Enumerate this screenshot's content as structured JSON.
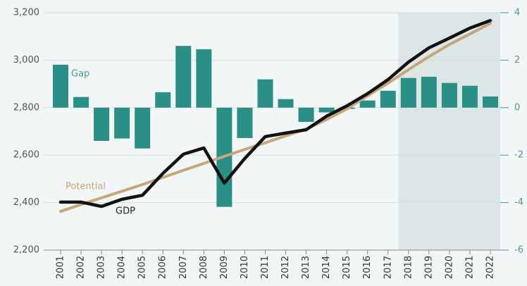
{
  "chart_data": {
    "type": "bar_line",
    "categories": [
      "2001",
      "2002",
      "2003",
      "2004",
      "2005",
      "2006",
      "2007",
      "2008",
      "2009",
      "2010",
      "2011",
      "2012",
      "2013",
      "2014",
      "2015",
      "2016",
      "2017",
      "2018",
      "2019",
      "2020",
      "2021",
      "2022"
    ],
    "series": [
      {
        "name": "Gap",
        "type": "bar",
        "axis": "y2",
        "color": "#2a8f84",
        "values": [
          1.81,
          0.45,
          -1.4,
          -1.3,
          -1.72,
          0.65,
          2.6,
          2.46,
          -4.18,
          -1.28,
          1.19,
          0.36,
          -0.6,
          -0.2,
          -0.05,
          0.3,
          0.71,
          1.25,
          1.3,
          1.04,
          0.92,
          0.47
        ]
      },
      {
        "name": "Potential",
        "type": "line",
        "color": "#c4a77a",
        "values": [
          2363,
          2392,
          2420,
          2448,
          2476,
          2506,
          2536,
          2565,
          2595,
          2624,
          2652,
          2681,
          2710,
          2750,
          2795,
          2850,
          2903,
          2960,
          3015,
          3066,
          3110,
          3155
        ]
      },
      {
        "name": "GDP",
        "type": "line",
        "color": "#111111",
        "values": [
          2402,
          2402,
          2384,
          2414,
          2431,
          2523,
          2604,
          2630,
          2482,
          2586,
          2678,
          2693,
          2707,
          2764,
          2808,
          2859,
          2918,
          2992,
          3052,
          3093,
          3135,
          3167
        ]
      }
    ],
    "ylim": [
      2200,
      3200
    ],
    "yticks": [
      {
        "value": 2200,
        "label": "2,200"
      },
      {
        "value": 2400,
        "label": "2,400"
      },
      {
        "value": 2600,
        "label": "2,600"
      },
      {
        "value": 2800,
        "label": "2,800"
      },
      {
        "value": 3000,
        "label": "3,000"
      },
      {
        "value": 3200,
        "label": "3,200"
      }
    ],
    "y2lim": [
      -6,
      4
    ],
    "y2ticks": [
      -6,
      -4,
      -2,
      0,
      2,
      4
    ],
    "highlight": {
      "start": "2018",
      "end": "2022"
    },
    "grid": true
  }
}
